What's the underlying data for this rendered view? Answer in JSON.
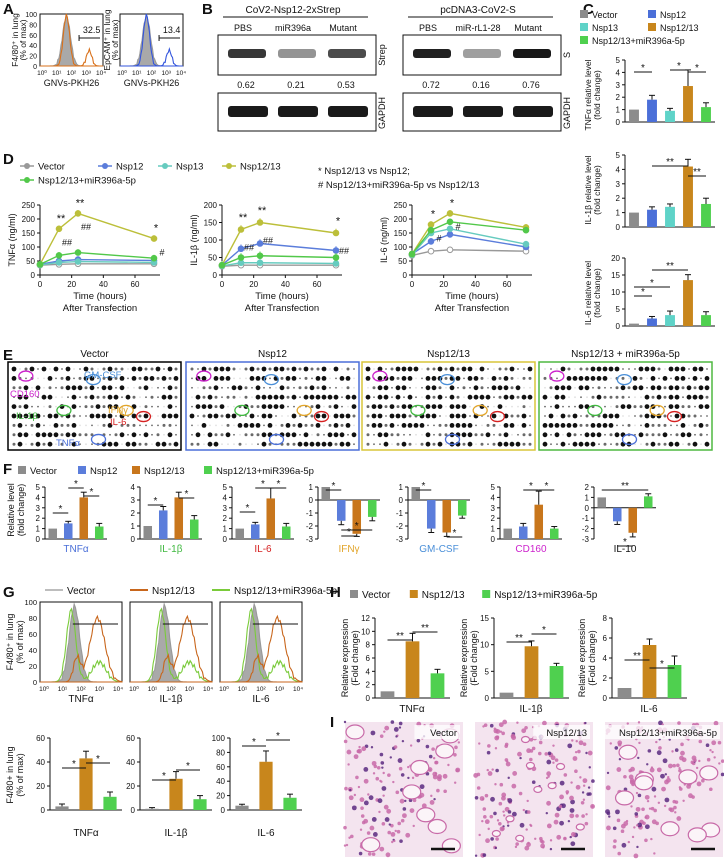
{
  "figure": {
    "panels": {
      "A": {
        "letter": "A",
        "plots": [
          {
            "ylabel": [
              "F4/80⁺ in lung",
              "(% of max)"
            ],
            "xlabel": "GNVs-PKH26",
            "gate": "32.5",
            "color": "#d9711b"
          },
          {
            "ylabel": [
              "EpCAM⁺ in lung",
              "(% of max)"
            ],
            "xlabel": "GNVs-PKH26",
            "gate": "13.4",
            "color": "#3355dd"
          }
        ],
        "yticks": [
          "0",
          "20",
          "40",
          "60",
          "80",
          "100"
        ],
        "xticks": [
          "10⁰",
          "10¹",
          "10²",
          "10³",
          "10⁴"
        ]
      },
      "B": {
        "letter": "B",
        "blots": [
          {
            "title": "CoV2-Nsp12-2xStrep",
            "lanes": [
              "PBS",
              "miR396a",
              "Mutant"
            ],
            "values": [
              "0.62",
              "0.21",
              "0.53"
            ],
            "band_label": "Strep",
            "control_label": "GAPDH",
            "intensity": [
              0.62,
              0.21,
              0.53
            ]
          },
          {
            "title": "pcDNA3-CoV2-S",
            "lanes": [
              "PBS",
              "miR-rL1-28",
              "Mutant"
            ],
            "values": [
              "0.72",
              "0.16",
              "0.76"
            ],
            "band_label": "S",
            "control_label": "GAPDH",
            "intensity": [
              0.72,
              0.16,
              0.76
            ]
          }
        ]
      },
      "C": {
        "letter": "C",
        "legend": [
          {
            "label": "Vector",
            "color": "#8c8c8c"
          },
          {
            "label": "Nsp12",
            "color": "#4b6fd8"
          },
          {
            "label": "Nsp13",
            "color": "#5fd3c8"
          },
          {
            "label": "Nsp12/13",
            "color": "#c8861c"
          },
          {
            "label": "Nsp12/13+miR396a-5p",
            "color": "#4fd04f"
          }
        ],
        "charts": [
          {
            "ylabel": [
              "TNFα relative level",
              "(fold change)"
            ],
            "yticks": [
              "0",
              "1",
              "2",
              "3",
              "4",
              "5"
            ],
            "ylim": [
              0,
              5
            ],
            "values": [
              1.0,
              1.8,
              0.9,
              2.9,
              1.2
            ],
            "errors": [
              0,
              0.35,
              0.2,
              1.3,
              0.35
            ],
            "stars": [
              "*",
              "*",
              "*"
            ]
          },
          {
            "ylabel": [
              "IL-1β relative level",
              "(fold change)"
            ],
            "yticks": [
              "0",
              "1",
              "2",
              "3",
              "4",
              "5"
            ],
            "ylim": [
              0,
              5
            ],
            "values": [
              1.0,
              1.2,
              1.4,
              4.2,
              1.6
            ],
            "errors": [
              0,
              0.2,
              0.2,
              0.5,
              0.4
            ],
            "stars": [
              "**",
              "**"
            ]
          },
          {
            "ylabel": [
              "IL-6 relative level",
              "(fold change)"
            ],
            "yticks": [
              "0",
              "5",
              "10",
              "15",
              "20"
            ],
            "ylim": [
              0,
              20
            ],
            "values": [
              0.7,
              2.2,
              3.2,
              13.5,
              3.2
            ],
            "errors": [
              0,
              0.6,
              1.2,
              1.6,
              1.0
            ],
            "stars": [
              "*",
              "*",
              "**"
            ]
          }
        ]
      },
      "D": {
        "letter": "D",
        "legend": [
          {
            "label": "Vector",
            "color": "#999999",
            "marker": "circle"
          },
          {
            "label": "Nsp12",
            "color": "#5b7ddb",
            "marker": "square"
          },
          {
            "label": "Nsp13",
            "color": "#66cbbf",
            "marker": "triangle"
          },
          {
            "label": "Nsp12/13",
            "color": "#bcbf3a",
            "marker": "tri-down"
          },
          {
            "label": "Nsp12/13+miR396a-5p",
            "color": "#52c84a",
            "marker": "diamond"
          }
        ],
        "notes": [
          "*  Nsp12/13 vs Nsp12;",
          "#  Nsp12/13+miR396a-5p vs Nsp12/13"
        ],
        "x": [
          0,
          12,
          24,
          72
        ],
        "xticks": [
          "0",
          "20",
          "40",
          "60"
        ],
        "xlabel": [
          "Time (hours)",
          "After Transfection"
        ],
        "charts": [
          {
            "ylabel": "TNFα (ng/ml)",
            "yticks": [
              "0",
              "50",
              "100",
              "150",
              "200",
              "250"
            ],
            "ylim": [
              0,
              250
            ],
            "series": [
              [
                35,
                38,
                40,
                40
              ],
              [
                38,
                50,
                55,
                52
              ],
              [
                36,
                45,
                48,
                45
              ],
              [
                38,
                165,
                220,
                130
              ],
              [
                38,
                70,
                80,
                60
              ]
            ],
            "stars": [
              "**",
              "**",
              "*"
            ],
            "hashes": [
              "##",
              "##",
              "#"
            ]
          },
          {
            "ylabel": "IL-1β (ng/ml)",
            "yticks": [
              "0",
              "50",
              "100",
              "150",
              "200"
            ],
            "ylim": [
              0,
              200
            ],
            "series": [
              [
                25,
                28,
                28,
                28
              ],
              [
                28,
                75,
                90,
                70
              ],
              [
                26,
                35,
                35,
                33
              ],
              [
                28,
                130,
                150,
                120
              ],
              [
                28,
                50,
                55,
                50
              ]
            ],
            "stars": [
              "**",
              "**",
              "*"
            ],
            "hashes": [
              "##",
              "##",
              "##"
            ]
          },
          {
            "ylabel": "IL-6 (ng/ml)",
            "yticks": [
              "0",
              "50",
              "100",
              "150",
              "200",
              "250"
            ],
            "ylim": [
              0,
              250
            ],
            "series": [
              [
                70,
                85,
                90,
                85
              ],
              [
                75,
                120,
                145,
                100
              ],
              [
                72,
                150,
                165,
                110
              ],
              [
                75,
                180,
                220,
                170
              ],
              [
                75,
                160,
                190,
                160
              ]
            ],
            "stars": [
              "*",
              "*"
            ],
            "hashes": [
              "#",
              "#"
            ]
          }
        ]
      },
      "E": {
        "letter": "E",
        "arrays": [
          {
            "title": "Vector",
            "border": "#000000",
            "labels": [
              "CD160",
              "GM-CSF",
              "IL-1β",
              "IFNγ",
              "IL-6",
              "TNFα"
            ]
          },
          {
            "title": "Nsp12",
            "border": "#4b6fd8",
            "labels": []
          },
          {
            "title": "Nsp12/13",
            "border": "#d9c53a",
            "labels": []
          },
          {
            "title": "Nsp12/13 + miR396a-5p",
            "border": "#4fb840",
            "labels": []
          }
        ],
        "label_colors": {
          "CD160": "#cc22cc",
          "GM-CSF": "#4a8fd8",
          "IL-1β": "#3fb83f",
          "IFNγ": "#e2a52a",
          "IL-6": "#d52020",
          "TNFα": "#4a6fd8"
        }
      },
      "F": {
        "letter": "F",
        "legend": [
          {
            "label": "Vector",
            "color": "#8c8c8c"
          },
          {
            "label": "Nsp12",
            "color": "#5b7ddb"
          },
          {
            "label": "Nsp12/13",
            "color": "#c8761c"
          },
          {
            "label": "Nsp12/13+miR396a-5p",
            "color": "#4fd04f"
          }
        ],
        "ylabel": [
          "Relative level",
          "(fold change)"
        ],
        "charts": [
          {
            "xlabel": "TNFα",
            "xcolor": "#4a6fd8",
            "ylim": [
              0,
              5
            ],
            "yticks": [
              "0",
              "1",
              "2",
              "3",
              "4",
              "5"
            ],
            "values": [
              1.0,
              1.5,
              4.0,
              1.2
            ],
            "errors": [
              0,
              0.2,
              0.5,
              0.3
            ],
            "stars": [
              "*",
              "*",
              "*"
            ]
          },
          {
            "xlabel": "IL-1β",
            "xcolor": "#3fb83f",
            "ylim": [
              0,
              4
            ],
            "yticks": [
              "0",
              "1",
              "2",
              "3",
              "4"
            ],
            "values": [
              1.0,
              2.2,
              3.2,
              1.5
            ],
            "errors": [
              0,
              0.3,
              0.4,
              0.3
            ],
            "stars": [
              "*",
              "*"
            ]
          },
          {
            "xlabel": "IL-6",
            "xcolor": "#d52020",
            "ylim": [
              0,
              5
            ],
            "yticks": [
              "0",
              "1",
              "2",
              "3",
              "4",
              "5"
            ],
            "values": [
              1.0,
              1.4,
              3.9,
              1.2
            ],
            "errors": [
              0,
              0.2,
              1.0,
              0.3
            ],
            "stars": [
              "*",
              "*",
              "*"
            ]
          },
          {
            "xlabel": "IFNγ",
            "xcolor": "#e2a52a",
            "ylim": [
              -3,
              1
            ],
            "yticks": [
              "-3",
              "-2",
              "-1",
              "0",
              "1"
            ],
            "values": [
              1.0,
              -1.6,
              -2.6,
              -1.3
            ],
            "errors": [
              0,
              0.3,
              0.2,
              0.3
            ],
            "stars": [
              "*",
              "*",
              "*"
            ]
          },
          {
            "xlabel": "GM-CSF",
            "xcolor": "#4a8fd8",
            "ylim": [
              -3,
              1
            ],
            "yticks": [
              "-3",
              "-2",
              "-1",
              "0",
              "1"
            ],
            "values": [
              1.0,
              -2.2,
              -2.5,
              -1.2
            ],
            "errors": [
              0,
              0.3,
              0.3,
              0.2
            ],
            "stars": [
              "*",
              "*"
            ]
          },
          {
            "xlabel": "CD160",
            "xcolor": "#cc22cc",
            "ylim": [
              0,
              5
            ],
            "yticks": [
              "0",
              "1",
              "2",
              "3",
              "4",
              "5"
            ],
            "values": [
              1.0,
              1.2,
              3.3,
              1.0
            ],
            "errors": [
              0,
              0.3,
              1.3,
              0.2
            ],
            "stars": [
              "*",
              "*"
            ]
          },
          {
            "xlabel": "IL-10",
            "xcolor": "#111111",
            "ylim": [
              -3,
              2
            ],
            "yticks": [
              "-3",
              "-2",
              "-1",
              "0",
              "1",
              "2"
            ],
            "values": [
              1.0,
              -1.3,
              -2.4,
              1.1
            ],
            "errors": [
              0,
              0.3,
              0.4,
              0.25
            ],
            "stars": [
              "*",
              "**"
            ]
          }
        ]
      },
      "G": {
        "letter": "G",
        "legend": [
          {
            "label": "Vector",
            "color": "#bdbdbd"
          },
          {
            "label": "Nsp12/13",
            "color": "#c8661c"
          },
          {
            "label": "Nsp12/13+miR396a-5p",
            "color": "#7acb3a"
          }
        ],
        "hist_ylabel": [
          "F4/80⁺ in lung",
          "(% of max)"
        ],
        "hist_yticks": [
          "0",
          "20",
          "40",
          "60",
          "80",
          "100"
        ],
        "hist_xticks": [
          "10⁰",
          "10¹",
          "10²",
          "10³",
          "10⁴"
        ],
        "hists": [
          "TNFα",
          "IL-1β",
          "IL-6"
        ],
        "bar_ylabel": [
          "F4/80+ in lung",
          "(% of max)"
        ],
        "bar_colors": [
          "#8c8c8c",
          "#c8861c",
          "#4fd04f"
        ],
        "bars": [
          {
            "xlabel": "TNFα",
            "ylim": [
              0,
              60
            ],
            "yticks": [
              "0",
              "20",
              "40",
              "60"
            ],
            "values": [
              3,
              43,
              11
            ],
            "errors": [
              2,
              6,
              4
            ],
            "stars": [
              "*",
              "*"
            ]
          },
          {
            "xlabel": "IL-1β",
            "ylim": [
              0,
              60
            ],
            "yticks": [
              "0",
              "20",
              "40",
              "60"
            ],
            "values": [
              1,
              26,
              9
            ],
            "errors": [
              1,
              6,
              3
            ],
            "stars": [
              "*",
              "*"
            ]
          },
          {
            "xlabel": "IL-6",
            "ylim": [
              0,
              100
            ],
            "yticks": [
              "0",
              "20",
              "40",
              "60",
              "80",
              "100"
            ],
            "values": [
              6,
              67,
              17
            ],
            "errors": [
              2,
              15,
              5
            ],
            "stars": [
              "*",
              "*"
            ]
          }
        ]
      },
      "H": {
        "letter": "H",
        "legend": [
          {
            "label": "Vector",
            "color": "#8c8c8c"
          },
          {
            "label": "Nsp12/13",
            "color": "#c8861c"
          },
          {
            "label": "Nsp12/13+miR396a-5p",
            "color": "#4fd04f"
          }
        ],
        "ylabel": [
          "Relative expression",
          "(Fold change)"
        ],
        "charts": [
          {
            "xlabel": "TNFα",
            "ylim": [
              0,
              12
            ],
            "yticks": [
              "0",
              "2",
              "4",
              "6",
              "8",
              "10",
              "12"
            ],
            "values": [
              1,
              8.5,
              3.7
            ],
            "errors": [
              0,
              1.2,
              0.6
            ],
            "stars": [
              "**",
              "**"
            ]
          },
          {
            "xlabel": "IL-1β",
            "ylim": [
              0,
              15
            ],
            "yticks": [
              "0",
              "5",
              "10",
              "15"
            ],
            "values": [
              1,
              9.7,
              6.0
            ],
            "errors": [
              0,
              1.0,
              0.5
            ],
            "stars": [
              "**",
              "*"
            ]
          },
          {
            "xlabel": "IL-6",
            "ylim": [
              0,
              8
            ],
            "yticks": [
              "0",
              "2",
              "4",
              "6",
              "8"
            ],
            "values": [
              1,
              5.3,
              3.3
            ],
            "errors": [
              0,
              0.6,
              0.9
            ],
            "stars": [
              "**",
              "*"
            ]
          }
        ]
      },
      "I": {
        "letter": "I",
        "images": [
          "Vector",
          "Nsp12/13",
          "Nsp12/13+miR396a-5p"
        ],
        "colors": {
          "bg": "#f4e4ef",
          "tissue": "#c86aa8",
          "nuclei": "#5a2a80"
        }
      }
    }
  }
}
